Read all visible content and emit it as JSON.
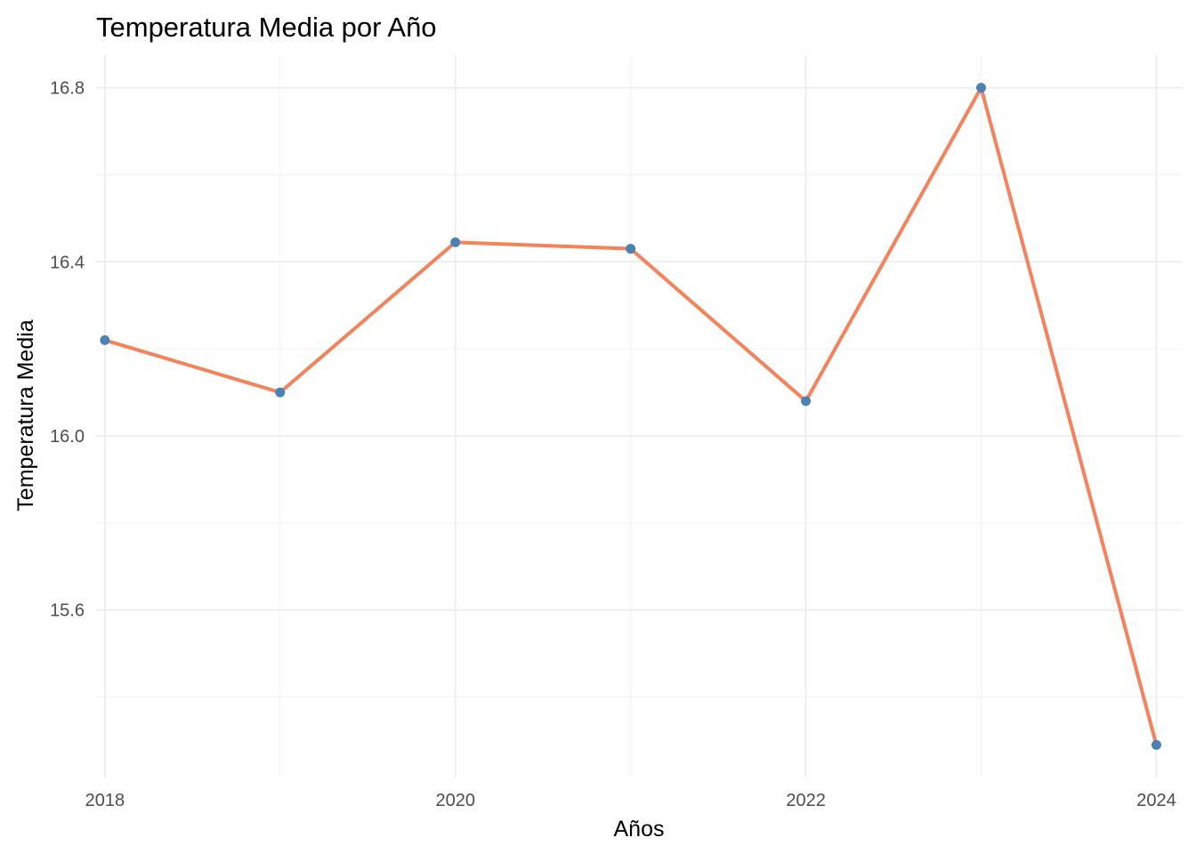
{
  "chart_data": {
    "type": "line",
    "title": "Temperatura Media por Año",
    "xlabel": "Años",
    "ylabel": "Temperatura Media",
    "x": [
      2018,
      2019,
      2020,
      2021,
      2022,
      2023,
      2024
    ],
    "series": [
      {
        "values": [
          16.22,
          16.1,
          16.445,
          16.43,
          16.08,
          16.8,
          15.29
        ]
      }
    ],
    "xlim": [
      2017.95,
      2024.15
    ],
    "ylim": [
      15.215,
      16.875
    ],
    "x_ticks": [
      2018,
      2020,
      2022,
      2024
    ],
    "x_tick_labels": [
      "2018",
      "2020",
      "2022",
      "2024"
    ],
    "y_ticks": [
      15.6,
      16.0,
      16.4,
      16.8
    ],
    "y_tick_labels": [
      "15.6",
      "16.0",
      "16.4",
      "16.8"
    ],
    "x_minor_ticks": [
      2019,
      2021,
      2023
    ],
    "y_minor_ticks": [
      15.4,
      15.8,
      16.2,
      16.6
    ],
    "grid": true,
    "legend": "none",
    "colors": {
      "line": "#f4825a",
      "point": "#4a82b4"
    }
  }
}
